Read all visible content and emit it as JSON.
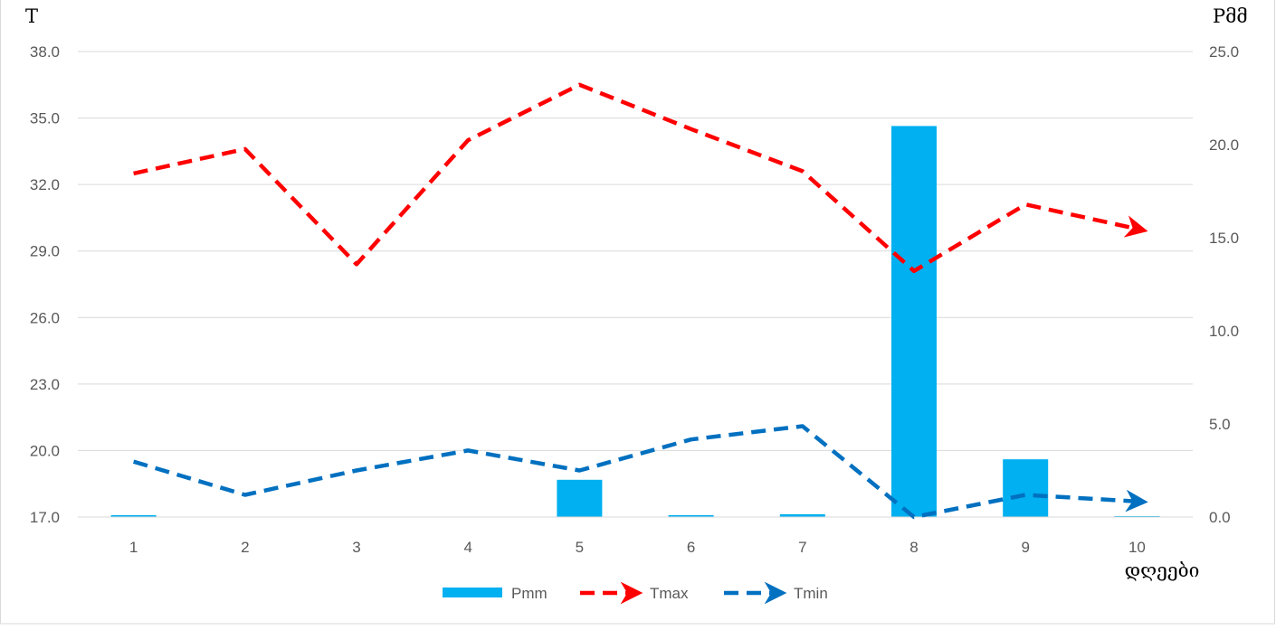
{
  "chart_data": {
    "type": "bar",
    "title": "",
    "xlabel": "დღეები",
    "ylabel": "T",
    "y2label": "Pმმ",
    "categories": [
      "1",
      "2",
      "3",
      "4",
      "5",
      "6",
      "7",
      "8",
      "9",
      "10"
    ],
    "ylim": [
      17.0,
      38.0
    ],
    "yticks": [
      "17.0",
      "20.0",
      "23.0",
      "26.0",
      "29.0",
      "32.0",
      "35.0",
      "38.0"
    ],
    "y2lim": [
      0.0,
      25.0
    ],
    "y2ticks": [
      "0.0",
      "5.0",
      "10.0",
      "15.0",
      "20.0",
      "25.0"
    ],
    "grid": true,
    "legend_position": "bottom",
    "series": [
      {
        "name": "Pmm",
        "type": "bar",
        "axis": "right",
        "color": "#00B0F0",
        "values": [
          0.1,
          0.0,
          0.0,
          0.0,
          2.0,
          0.1,
          0.15,
          21.0,
          3.1,
          0.05
        ]
      },
      {
        "name": "Tmax",
        "type": "line",
        "axis": "left",
        "color": "#FF0000",
        "dashed": true,
        "arrow": true,
        "values": [
          32.5,
          33.6,
          28.4,
          34.0,
          36.5,
          34.5,
          32.6,
          28.1,
          31.1,
          30.0
        ]
      },
      {
        "name": "Tmin",
        "type": "line",
        "axis": "left",
        "color": "#0070C0",
        "dashed": true,
        "arrow": true,
        "values": [
          19.5,
          18.0,
          19.1,
          20.0,
          19.1,
          20.5,
          21.1,
          17.0,
          18.0,
          17.7
        ]
      }
    ]
  }
}
